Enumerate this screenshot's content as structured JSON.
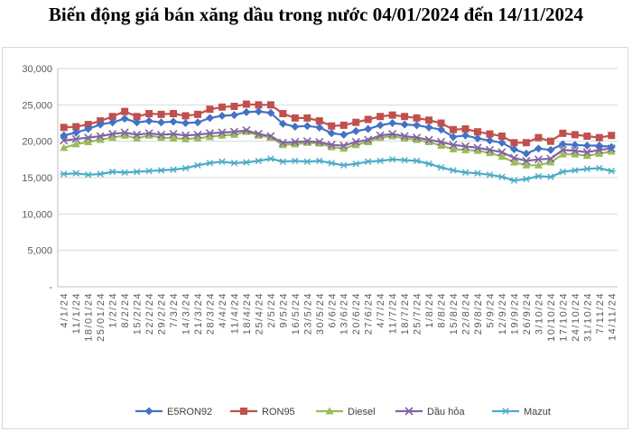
{
  "title": "Biến động giá bán xăng dầu trong nước 04/01/2024 đến 14/11/2024",
  "chart_data": {
    "type": "line",
    "ylim": [
      0,
      30000
    ],
    "yticks": [
      "-",
      "5,000",
      "10,000",
      "15,000",
      "20,000",
      "25,000",
      "30,000"
    ],
    "grid": "horizontal",
    "legend_position": "bottom",
    "categories": [
      "4/1/24",
      "11/1/24",
      "18/01/24",
      "25/01/24",
      "1/2/24",
      "8/2/24",
      "15/2/24",
      "22/2/24",
      "29/2/24",
      "7/3/24",
      "14/3/24",
      "21/3/24",
      "28/3/24",
      "4/4/24",
      "11/4/24",
      "18/4/24",
      "25/4/24",
      "2/5/24",
      "9/5/24",
      "16/5/24",
      "23/5/24",
      "30/5/24",
      "6/6/24",
      "13/6/24",
      "20/6/24",
      "27/6/24",
      "4/7/24",
      "11/7/24",
      "18/7/24",
      "25/7/24",
      "1/8/24",
      "8/8/24",
      "15/8/24",
      "22/8/24",
      "29/8/24",
      "5/9/24",
      "12/9/24",
      "19/9/24",
      "26/9/24",
      "3/10/24",
      "10/10/24",
      "17/10/24",
      "24/10/24",
      "31/10/24",
      "7/11/24",
      "14/11/24"
    ],
    "series": [
      {
        "name": "E5RON92",
        "color": "#4472c4",
        "marker": "diamond",
        "values": [
          20800,
          21200,
          21700,
          22300,
          22600,
          23100,
          22600,
          22800,
          22600,
          22700,
          22500,
          22600,
          23200,
          23500,
          23600,
          24000,
          24100,
          23900,
          22400,
          22000,
          22100,
          21900,
          21100,
          20900,
          21400,
          21700,
          22200,
          22500,
          22300,
          22200,
          21900,
          21600,
          20600,
          20800,
          20400,
          20100,
          19800,
          18900,
          18300,
          19000,
          18800,
          19600,
          19500,
          19400,
          19400,
          19200
        ]
      },
      {
        "name": "RON95",
        "color": "#c0504d",
        "marker": "square",
        "values": [
          21900,
          22000,
          22300,
          22800,
          23400,
          24100,
          23400,
          23800,
          23700,
          23800,
          23500,
          23700,
          24400,
          24700,
          24800,
          25100,
          25000,
          25000,
          23800,
          23200,
          23200,
          22800,
          22100,
          22200,
          22600,
          23000,
          23400,
          23600,
          23400,
          23200,
          22900,
          22500,
          21600,
          21700,
          21300,
          21000,
          20700,
          19800,
          19800,
          20500,
          20000,
          21100,
          20900,
          20700,
          20500,
          20800
        ]
      },
      {
        "name": "Diesel",
        "color": "#9bbb59",
        "marker": "triangle",
        "values": [
          19100,
          19600,
          19900,
          20200,
          20500,
          20800,
          20400,
          20800,
          20500,
          20400,
          20300,
          20400,
          20600,
          20800,
          20900,
          21300,
          20800,
          20500,
          19500,
          19600,
          19800,
          19700,
          19200,
          19000,
          19500,
          19900,
          20500,
          20700,
          20400,
          20200,
          19900,
          19400,
          18900,
          18800,
          18700,
          18400,
          17900,
          17100,
          16700,
          16700,
          17100,
          18200,
          18200,
          18000,
          18300,
          18600
        ]
      },
      {
        "name": "Dầu hỏa",
        "color": "#8064a2",
        "marker": "x",
        "values": [
          20100,
          20300,
          20500,
          20700,
          21000,
          21200,
          20900,
          21100,
          20900,
          21000,
          20800,
          20900,
          21100,
          21200,
          21300,
          21500,
          21000,
          20700,
          19800,
          19900,
          20000,
          19900,
          19500,
          19400,
          19900,
          20200,
          20800,
          21000,
          20700,
          20500,
          20200,
          19900,
          19500,
          19300,
          19100,
          18800,
          18500,
          17700,
          17300,
          17500,
          17600,
          18800,
          18700,
          18500,
          18800,
          19000
        ]
      },
      {
        "name": "Mazut",
        "color": "#4bacc6",
        "marker": "star",
        "values": [
          15500,
          15600,
          15400,
          15500,
          15800,
          15700,
          15800,
          15900,
          16000,
          16100,
          16300,
          16700,
          17000,
          17200,
          17000,
          17100,
          17300,
          17600,
          17200,
          17300,
          17200,
          17300,
          17000,
          16700,
          16900,
          17200,
          17300,
          17500,
          17400,
          17300,
          16900,
          16400,
          16000,
          15700,
          15600,
          15400,
          15100,
          14600,
          14800,
          15200,
          15100,
          15800,
          16000,
          16200,
          16300,
          15900
        ]
      }
    ]
  }
}
